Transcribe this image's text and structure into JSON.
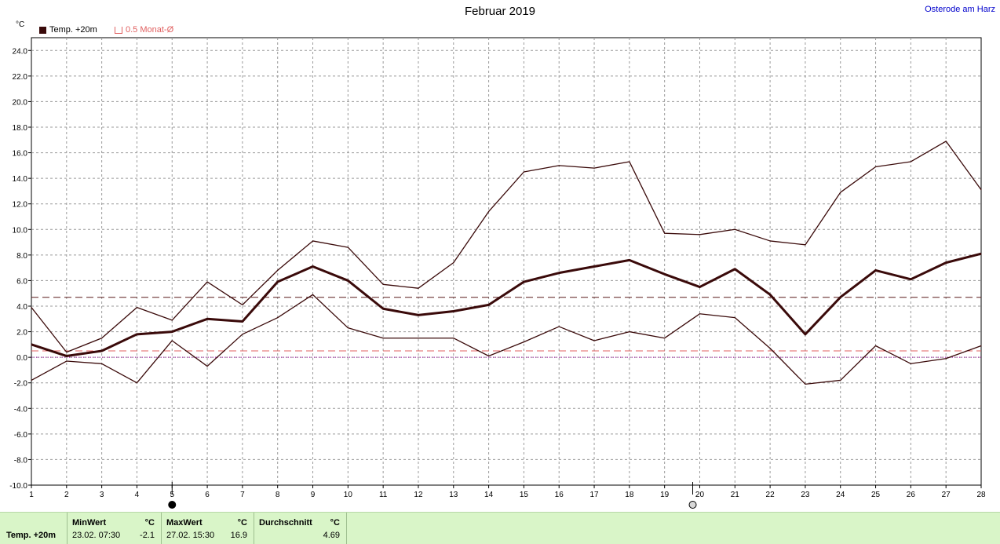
{
  "header": {
    "title": "Februar 2019",
    "location": "Osterode am Harz",
    "unit": "°C"
  },
  "legend": {
    "series_label": "Temp. +20m",
    "avg_label": "0.5 Monat-Ø"
  },
  "colors": {
    "series": "#3a0a0a",
    "mean": "#5a1a1a",
    "monthly_avg": "#e06060",
    "zero_line": "#a000a0",
    "footer_bg": "#d9f5c8"
  },
  "chart_data": {
    "type": "line",
    "title": "Februar 2019",
    "ylabel": "°C",
    "xlim": [
      1,
      28
    ],
    "ylim": [
      -10,
      25
    ],
    "grid": true,
    "x": [
      1,
      2,
      3,
      4,
      5,
      6,
      7,
      8,
      9,
      10,
      11,
      12,
      13,
      14,
      15,
      16,
      17,
      18,
      19,
      20,
      21,
      22,
      23,
      24,
      25,
      26,
      27,
      28
    ],
    "x_ticks": [
      1,
      2,
      3,
      4,
      5,
      6,
      7,
      8,
      9,
      10,
      11,
      12,
      13,
      14,
      15,
      16,
      17,
      18,
      19,
      20,
      21,
      22,
      23,
      24,
      25,
      26,
      27,
      28
    ],
    "y_ticks": [
      "24.0",
      "22.0",
      "20.0",
      "18.0",
      "16.0",
      "14.0",
      "12.0",
      "10.0",
      "8.0",
      "6.0",
      "4.0",
      "2.0",
      "0.0",
      "-2.0",
      "-4.0",
      "-6.0",
      "-8.0",
      "-10.0"
    ],
    "series": [
      {
        "role": "max",
        "values": [
          3.9,
          0.4,
          1.5,
          3.9,
          2.9,
          5.9,
          4.1,
          6.8,
          9.1,
          8.6,
          5.7,
          5.4,
          7.4,
          11.4,
          14.5,
          15.0,
          14.8,
          15.3,
          9.7,
          9.6,
          10.0,
          9.1,
          8.8,
          12.9,
          14.9,
          15.3,
          16.9,
          13.1
        ]
      },
      {
        "name": "Temp. +20m",
        "role": "mean",
        "values": [
          1.0,
          0.1,
          0.5,
          1.8,
          2.0,
          3.0,
          2.8,
          5.9,
          7.1,
          6.0,
          3.8,
          3.3,
          3.6,
          4.1,
          5.9,
          6.6,
          7.1,
          7.6,
          6.5,
          5.5,
          6.9,
          4.9,
          1.8,
          4.7,
          6.8,
          6.1,
          7.4,
          8.1
        ]
      },
      {
        "role": "min",
        "values": [
          -1.8,
          -0.3,
          -0.5,
          -2.0,
          1.3,
          -0.7,
          1.8,
          3.1,
          4.9,
          2.3,
          1.5,
          1.5,
          1.5,
          0.1,
          1.2,
          2.4,
          1.3,
          2.0,
          1.5,
          3.4,
          3.1,
          0.7,
          -2.1,
          -1.8,
          0.9,
          -0.5,
          -0.1,
          0.9
        ]
      }
    ],
    "reference_lines": [
      {
        "value": 4.69
      },
      {
        "name": "0.5 Monat-Ø",
        "value": 0.5
      },
      {
        "value": 0.0
      }
    ],
    "moon_phases": [
      {
        "day": 5,
        "phase": "new-moon"
      },
      {
        "day": 19.8,
        "phase": "full-moon"
      }
    ]
  },
  "footer": {
    "series_label": "Temp. +20m",
    "min_head": "MinWert",
    "min_unit": "°C",
    "min_date": "23.02.  07:30",
    "min_value": "-2.1",
    "max_head": "MaxWert",
    "max_unit": "°C",
    "max_date": "27.02.  15:30",
    "max_value": "16.9",
    "avg_head": "Durchschnitt",
    "avg_unit": "°C",
    "avg_value": "4.69"
  }
}
